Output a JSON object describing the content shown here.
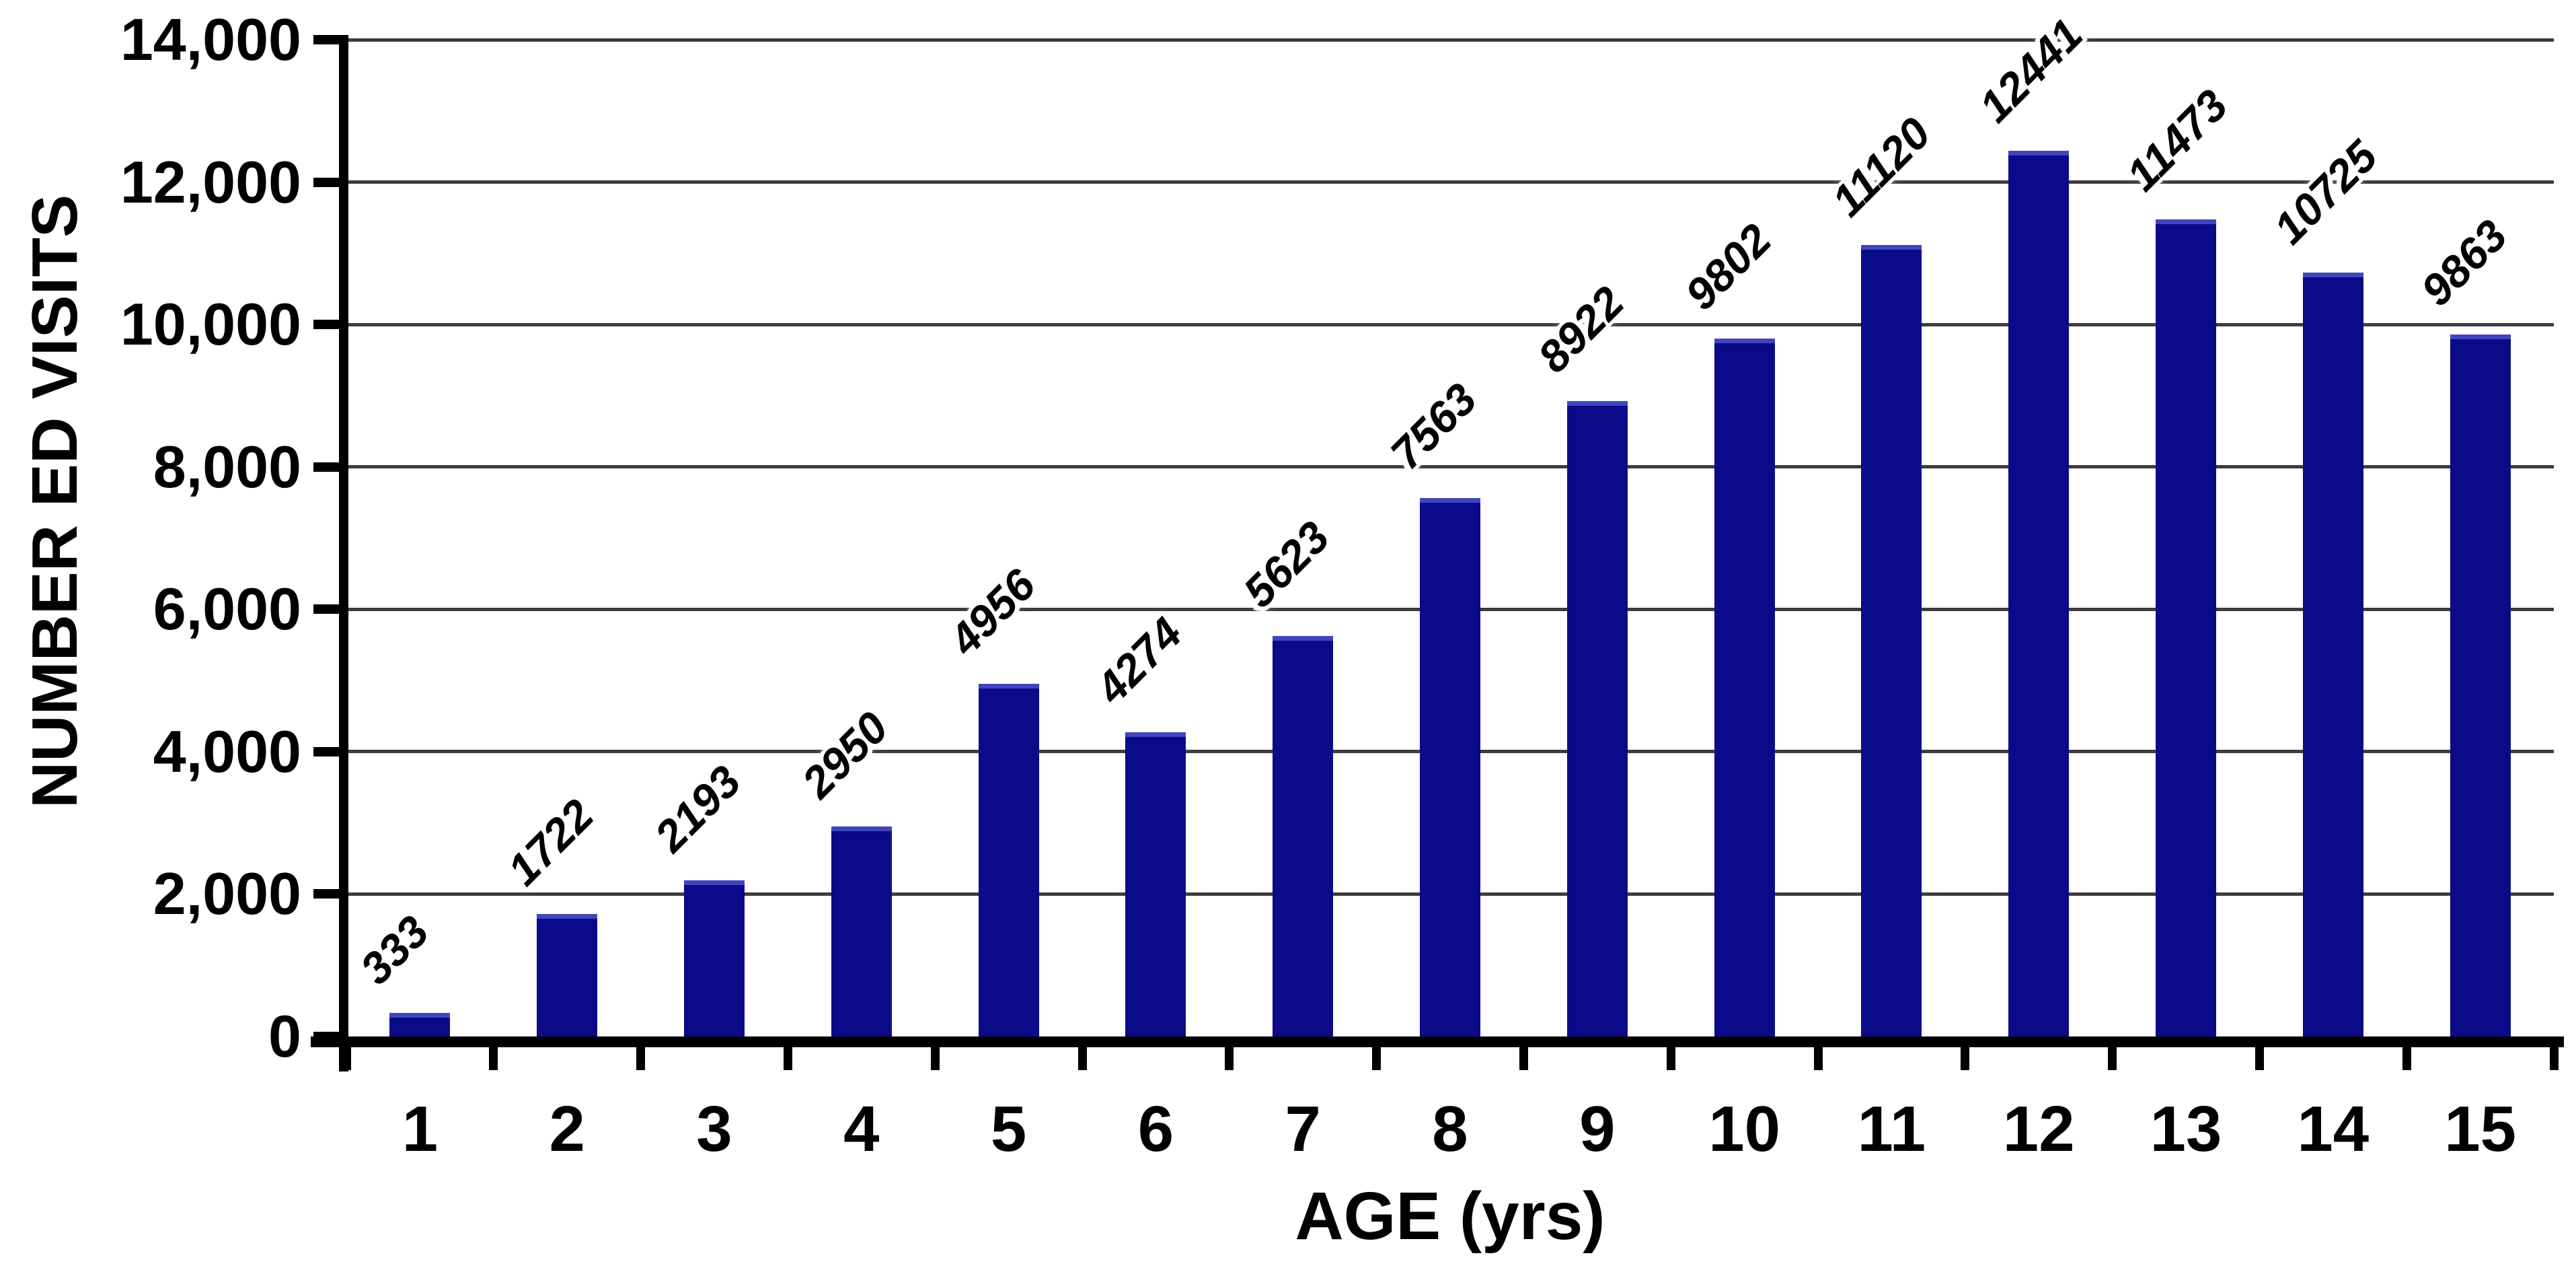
{
  "chart_data": {
    "type": "bar",
    "title": "",
    "xlabel": "AGE (yrs)",
    "ylabel": "NUMBER ED VISITS",
    "categories": [
      "1",
      "2",
      "3",
      "4",
      "5",
      "6",
      "7",
      "8",
      "9",
      "10",
      "11",
      "12",
      "13",
      "14",
      "15"
    ],
    "values": [
      333,
      1722,
      2193,
      2950,
      4956,
      4274,
      5623,
      7563,
      8922,
      9802,
      11120,
      12441,
      11473,
      10725,
      9863
    ],
    "bar_value_labels": [
      "333",
      "1722",
      "2193",
      "2950",
      "4956",
      "4274",
      "5623",
      "7563",
      "8922",
      "9802",
      "11120",
      "12441",
      "11473",
      "10725",
      "9863"
    ],
    "ylim": [
      0,
      14000
    ],
    "ytick_interval": 2000,
    "ytick_labels": [
      "0",
      "2,000",
      "4,000",
      "6,000",
      "8,000",
      "10,000",
      "12,000",
      "14,000"
    ],
    "grid": true,
    "legend": "none",
    "colors": {
      "bar": "#0b0b8a",
      "bar_top_edge": "#4145bd",
      "gridline": "#3d3d3d",
      "axis": "#000000",
      "text": "#000000",
      "background": "#ffffff"
    }
  }
}
